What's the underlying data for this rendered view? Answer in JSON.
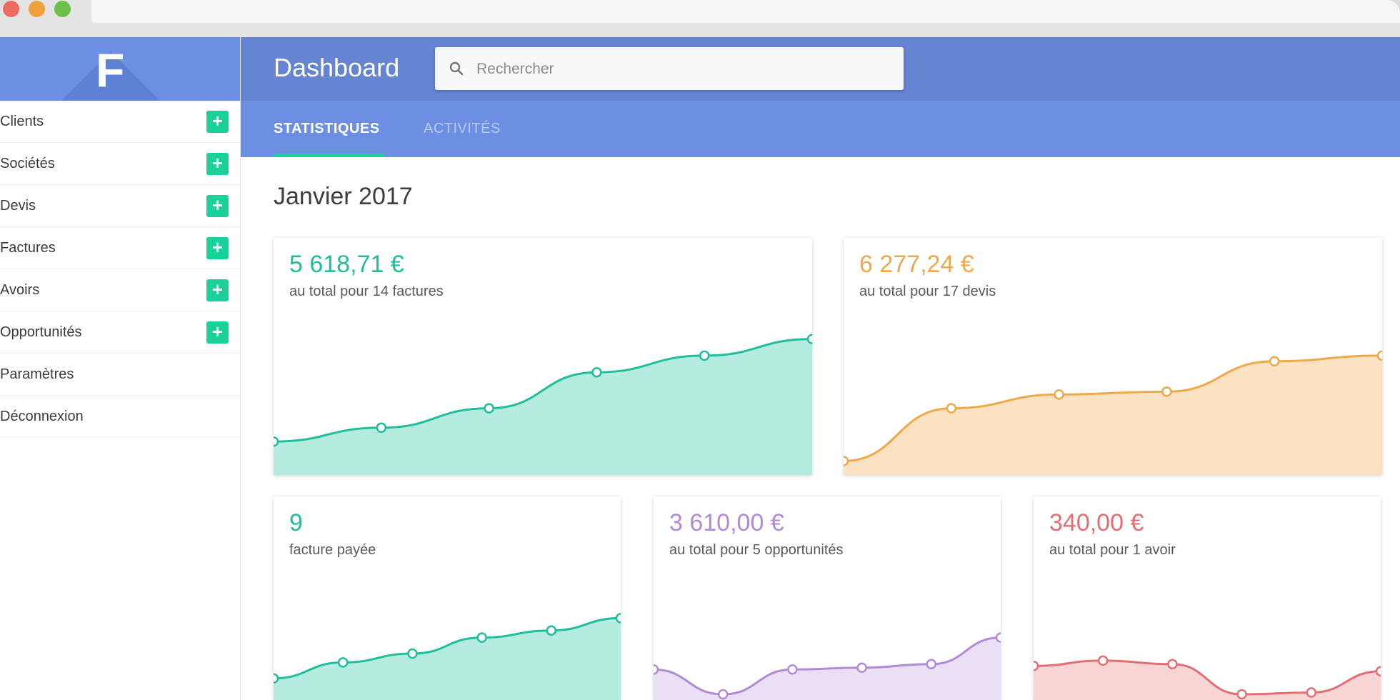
{
  "header": {
    "title": "Dashboard",
    "search_placeholder": "Rechercher"
  },
  "logo": {
    "letter": "F"
  },
  "sidebar": {
    "items": [
      {
        "label": "Clients",
        "add": true
      },
      {
        "label": "Sociétés",
        "add": true
      },
      {
        "label": "Devis",
        "add": true
      },
      {
        "label": "Factures",
        "add": true
      },
      {
        "label": "Avoirs",
        "add": true
      },
      {
        "label": "Opportunités",
        "add": true
      },
      {
        "label": "Paramètres",
        "add": false
      },
      {
        "label": "Déconnexion",
        "add": false
      }
    ],
    "add_symbol": "+"
  },
  "tabs": [
    {
      "label": "STATISTIQUES",
      "active": true
    },
    {
      "label": "ACTIVITÉS",
      "active": false
    }
  ],
  "main": {
    "period": "Janvier 2017"
  },
  "cards": [
    {
      "value": "5 618,71 €",
      "subtitle": "au total pour 14 factures",
      "color": "#1ebf9a",
      "fill": "#b5ecdf"
    },
    {
      "value": "6 277,24 €",
      "subtitle": "au total pour 17 devis",
      "color": "#f0a94a",
      "fill": "#fbe2c2"
    },
    {
      "value": "9",
      "subtitle": "facture payée",
      "color": "#1ebf9a",
      "fill": "#b5ecdf"
    },
    {
      "value": "3 610,00 €",
      "subtitle": "au total pour 5 opportunités",
      "color": "#b28bd6",
      "fill": "#eadff5"
    },
    {
      "value": "340,00 €",
      "subtitle": "au total pour 1 avoir",
      "color": "#e46f73",
      "fill": "#f9d4d4"
    }
  ],
  "chart_data": [
    {
      "type": "area",
      "values": [
        1.0,
        1.5,
        2.2,
        3.5,
        4.1,
        4.7
      ]
    },
    {
      "type": "area",
      "values": [
        0.3,
        2.2,
        2.7,
        2.8,
        3.9,
        4.1
      ]
    },
    {
      "type": "area",
      "values": [
        0.9,
        1.8,
        2.3,
        3.2,
        3.6,
        4.3
      ]
    },
    {
      "type": "area",
      "values": [
        1.4,
        0.0,
        1.4,
        1.5,
        1.7,
        3.2
      ]
    },
    {
      "type": "area",
      "values": [
        1.6,
        1.9,
        1.7,
        0.0,
        0.1,
        1.3
      ]
    }
  ],
  "icons": {
    "search": "search-icon",
    "add": "plus-icon"
  }
}
